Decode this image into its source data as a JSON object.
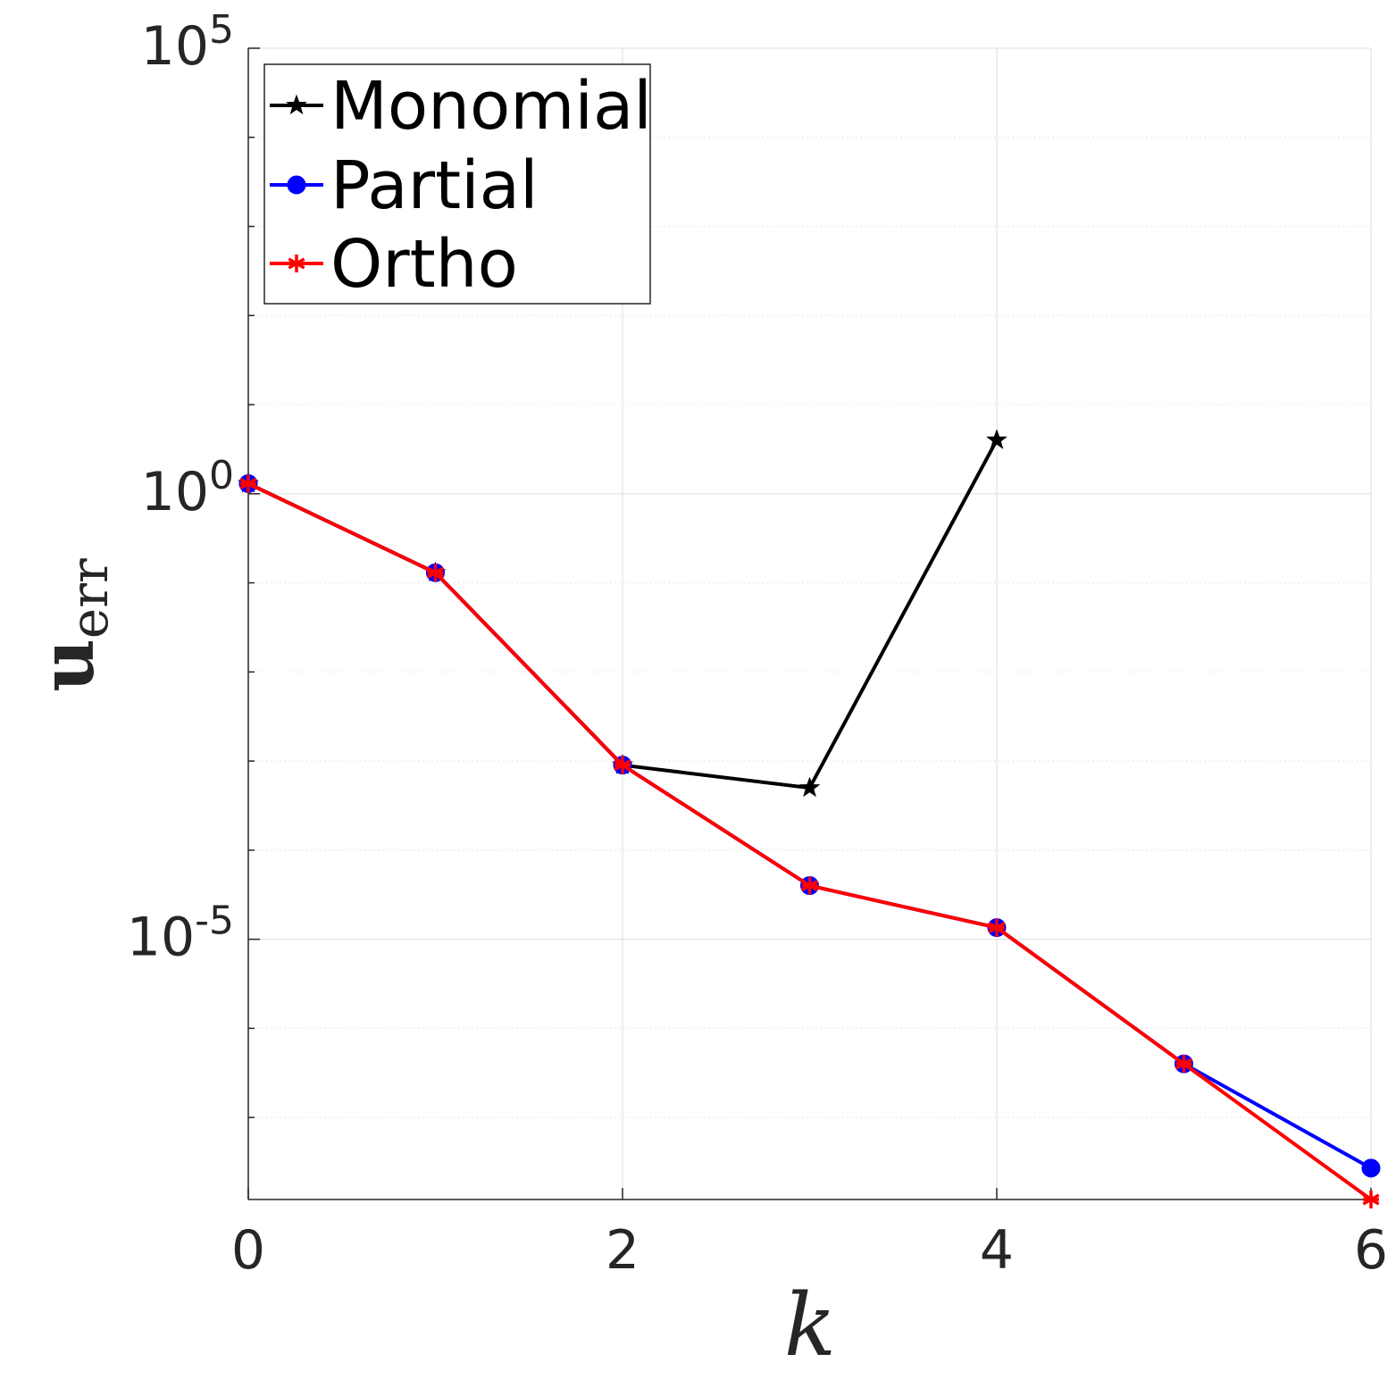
{
  "chart_data": {
    "type": "line",
    "xlabel": "k",
    "ylabel": {
      "main": "u",
      "sub": "err"
    },
    "x_scale": "linear",
    "y_scale": "log",
    "xlim": [
      0,
      6
    ],
    "ylim": [
      1.2e-08,
      100000
    ],
    "x_ticks": [
      0,
      2,
      4,
      6
    ],
    "x_tick_labels": [
      "0",
      "2",
      "4",
      "6"
    ],
    "y_ticks": [
      {
        "value": 100000,
        "base": "10",
        "exp": "5"
      },
      {
        "value": 1,
        "base": "10",
        "exp": "0"
      },
      {
        "value": 1e-05,
        "base": "10",
        "exp": "-5"
      }
    ],
    "grid": true,
    "legend_position": "top-left",
    "series": [
      {
        "name": "Monomial",
        "color": "#000000",
        "marker": "pentagram",
        "x": [
          0,
          1,
          2,
          3,
          4
        ],
        "y": [
          1.3,
          0.13,
          0.0009,
          0.0005,
          4.0
        ]
      },
      {
        "name": "Partial",
        "color": "#0000ff",
        "marker": "circle",
        "x": [
          0,
          1,
          2,
          3,
          4,
          5,
          6
        ],
        "y": [
          1.3,
          0.13,
          0.0009,
          4e-05,
          1.35e-05,
          4e-07,
          2.7e-08
        ]
      },
      {
        "name": "Ortho",
        "color": "#ff0000",
        "marker": "asterisk",
        "x": [
          0,
          1,
          2,
          3,
          4,
          5,
          6
        ],
        "y": [
          1.3,
          0.13,
          0.0009,
          4e-05,
          1.35e-05,
          4e-07,
          1.2e-08
        ]
      }
    ]
  }
}
